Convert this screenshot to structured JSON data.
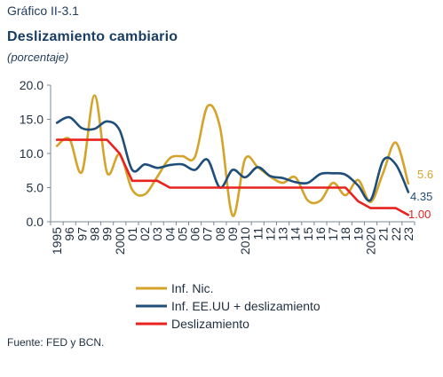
{
  "header": {
    "label": "Gráfico II-3.1",
    "title": "Deslizamiento cambiario",
    "subtitle": "(porcentaje)"
  },
  "source": "Fuente: FED y BCN.",
  "colors": {
    "inf_nic": "#d4a32a",
    "inf_usa": "#1f4e79",
    "deslizamiento": "#e8231f",
    "text": "#1f3b5a"
  },
  "chart_data": {
    "type": "line",
    "x": [
      1995,
      1996,
      1997,
      1998,
      1999,
      2000,
      2001,
      2002,
      2003,
      2004,
      2005,
      2006,
      2007,
      2008,
      2009,
      2010,
      2011,
      2012,
      2013,
      2014,
      2015,
      2016,
      2017,
      2018,
      2019,
      2020,
      2021,
      2022,
      2023
    ],
    "x_tick_labels": [
      "1995",
      "96",
      "97",
      "98",
      "99",
      "2000",
      "01",
      "02",
      "03",
      "04",
      "05",
      "06",
      "07",
      "08",
      "09",
      "2010",
      "11",
      "12",
      "13",
      "14",
      "15",
      "16",
      "17",
      "18",
      "19",
      "2020",
      "21",
      "22",
      "23"
    ],
    "ylim": [
      0,
      20
    ],
    "y_ticks": [
      "0.0",
      "5.0",
      "10.0",
      "15.0",
      "20.0"
    ],
    "grid": false,
    "legend_position": "bottom-center",
    "series": [
      {
        "name": "Inf. Nic.",
        "color_key": "inf_nic",
        "values": [
          11.1,
          12.1,
          7.3,
          18.5,
          7.2,
          9.9,
          4.7,
          4.0,
          6.6,
          9.3,
          9.6,
          9.5,
          16.9,
          13.8,
          0.9,
          9.2,
          8.0,
          6.6,
          5.7,
          6.5,
          3.1,
          3.1,
          5.7,
          3.9,
          6.1,
          2.9,
          7.2,
          11.6,
          5.6
        ],
        "end_label": "5.6"
      },
      {
        "name": "Inf. EE.UU + deslizamiento",
        "color_key": "inf_usa",
        "values": [
          14.5,
          15.3,
          13.7,
          13.6,
          14.7,
          13.4,
          7.6,
          8.4,
          7.9,
          8.3,
          8.4,
          7.6,
          9.1,
          5.0,
          7.6,
          6.5,
          8.0,
          6.7,
          6.4,
          5.8,
          5.7,
          7.0,
          7.1,
          6.9,
          5.3,
          3.2,
          9.0,
          8.4,
          4.35
        ],
        "end_label": "4.35"
      },
      {
        "name": "Deslizamiento",
        "color_key": "deslizamiento",
        "values": [
          12.0,
          12.0,
          12.0,
          12.0,
          12.0,
          10.0,
          6.0,
          6.0,
          6.0,
          5.0,
          5.0,
          5.0,
          5.0,
          5.0,
          5.0,
          5.0,
          5.0,
          5.0,
          5.0,
          5.0,
          5.0,
          5.0,
          5.0,
          5.0,
          3.0,
          2.0,
          2.0,
          2.0,
          1.0
        ],
        "end_label": "1.00"
      }
    ]
  }
}
